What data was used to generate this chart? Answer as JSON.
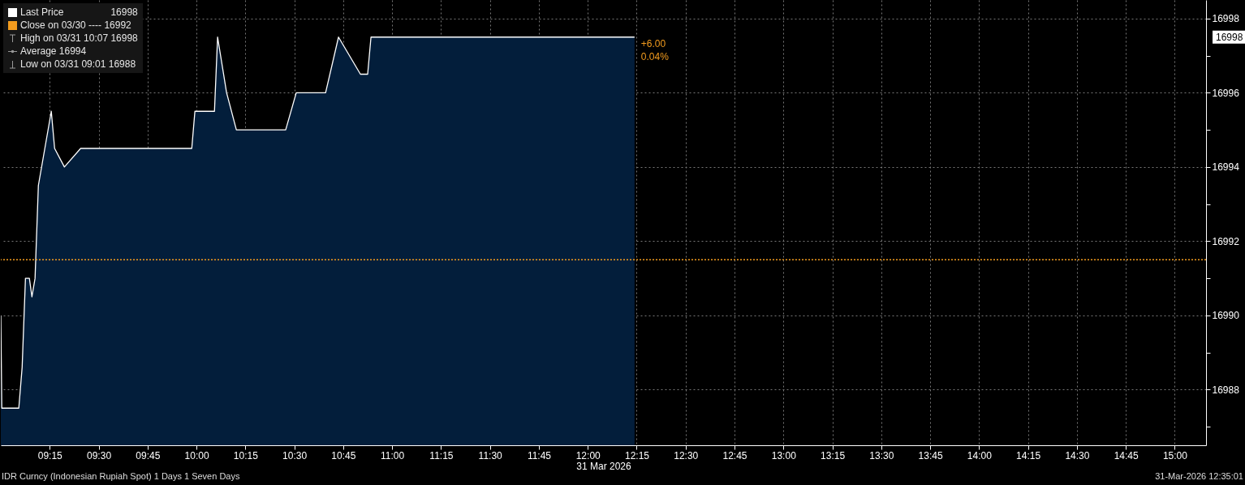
{
  "chart_data": {
    "type": "area",
    "xlabel": "31 Mar 2026",
    "legend": "top left",
    "grid": true,
    "x": [
      9.0,
      9.005,
      9.092,
      9.109,
      9.126,
      9.146,
      9.159,
      9.175,
      9.192,
      9.258,
      9.275,
      9.325,
      9.408,
      9.976,
      9.992,
      10.092,
      10.108,
      10.154,
      10.204,
      10.456,
      10.51,
      10.66,
      10.726,
      10.838,
      10.875,
      10.892,
      12.239
    ],
    "series": [
      {
        "name": "Last Price",
        "color": "#031e3b",
        "values": [
          16990,
          16987.5,
          16987.5,
          16988.6,
          16991,
          16991,
          16990.5,
          16991,
          16993.5,
          16995.5,
          16994.5,
          16994,
          16994.5,
          16994.5,
          16995.5,
          16995.5,
          16997.5,
          16996,
          16995,
          16995,
          16996,
          16996,
          16997.5,
          16996.5,
          16996.5,
          16997.5,
          16997.5
        ]
      }
    ],
    "xlim": [
      9.0,
      15.16
    ],
    "xticks": [
      {
        "value": 9.25,
        "label": "09:15"
      },
      {
        "value": 9.5,
        "label": "09:30"
      },
      {
        "value": 9.75,
        "label": "09:45"
      },
      {
        "value": 10,
        "label": "10:00"
      },
      {
        "value": 10.25,
        "label": "10:15"
      },
      {
        "value": 10.5,
        "label": "10:30"
      },
      {
        "value": 10.75,
        "label": "10:45"
      },
      {
        "value": 11,
        "label": "11:00"
      },
      {
        "value": 11.25,
        "label": "11:15"
      },
      {
        "value": 11.5,
        "label": "11:30"
      },
      {
        "value": 11.75,
        "label": "11:45"
      },
      {
        "value": 12,
        "label": "12:00"
      },
      {
        "value": 12.25,
        "label": "12:15"
      },
      {
        "value": 12.5,
        "label": "12:30"
      },
      {
        "value": 12.75,
        "label": "12:45"
      },
      {
        "value": 13,
        "label": "13:00"
      },
      {
        "value": 13.25,
        "label": "13:15"
      },
      {
        "value": 13.5,
        "label": "13:30"
      },
      {
        "value": 13.75,
        "label": "13:45"
      },
      {
        "value": 14,
        "label": "14:00"
      },
      {
        "value": 14.25,
        "label": "14:15"
      },
      {
        "value": 14.5,
        "label": "14:30"
      },
      {
        "value": 14.75,
        "label": "14:45"
      },
      {
        "value": 15,
        "label": "15:00"
      }
    ],
    "ylim": [
      16986.5,
      16998.5
    ],
    "yticks": [
      {
        "value": 16987,
        "label": null
      },
      16988,
      {
        "value": 16989,
        "label": null
      },
      16990,
      {
        "value": 16991,
        "label": null
      },
      16992,
      {
        "value": 16993,
        "label": null
      },
      16994,
      {
        "value": 16995,
        "label": null
      },
      16996,
      {
        "value": 16997,
        "label": null
      },
      16998
    ],
    "ref_lines": [
      {
        "axis": "y",
        "value": 16991.5,
        "label": "Close on 03/30 ---- 16992",
        "color": "#f39c1e",
        "line_style": "dotted"
      }
    ],
    "annotations": [
      "16998",
      "High on 03/31 10:07 16998",
      "Average 16994",
      "Low on 03/31 09:01 16988",
      "+6.00",
      "0.04%",
      "16998",
      "IDR Curncy (Indonesian Rupiah Spot) 1 Days 1 Seven Days",
      "31-Mar-2026 12:35:01"
    ]
  }
}
